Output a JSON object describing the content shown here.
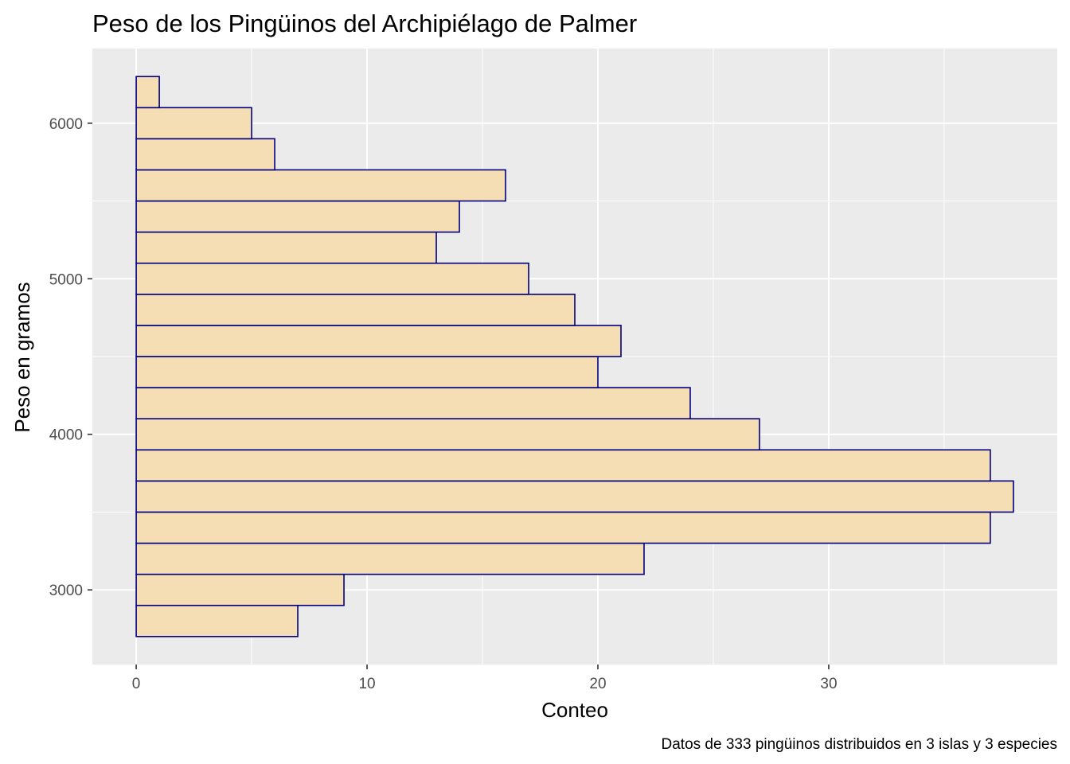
{
  "chart_data": {
    "type": "bar",
    "orientation": "horizontal",
    "title": "Peso de los Pingüinos del Archipiélago de Palmer",
    "xlabel": "Conteo",
    "ylabel": "Peso en gramos",
    "caption": "Datos de 333 pingüinos distribuidos en 3 islas y 3 especies",
    "xlim": [
      -1.9,
      39.9
    ],
    "ylim": [
      2520,
      6480
    ],
    "x_ticks": [
      0,
      10,
      20,
      30
    ],
    "y_ticks": [
      3000,
      4000,
      5000,
      6000
    ],
    "bins": [
      {
        "from": 2700,
        "to": 2900,
        "count": 7
      },
      {
        "from": 2900,
        "to": 3100,
        "count": 9
      },
      {
        "from": 3100,
        "to": 3300,
        "count": 22
      },
      {
        "from": 3300,
        "to": 3500,
        "count": 37
      },
      {
        "from": 3500,
        "to": 3700,
        "count": 38
      },
      {
        "from": 3700,
        "to": 3900,
        "count": 37
      },
      {
        "from": 3900,
        "to": 4100,
        "count": 27
      },
      {
        "from": 4100,
        "to": 4300,
        "count": 24
      },
      {
        "from": 4300,
        "to": 4500,
        "count": 20
      },
      {
        "from": 4500,
        "to": 4700,
        "count": 21
      },
      {
        "from": 4700,
        "to": 4900,
        "count": 19
      },
      {
        "from": 4900,
        "to": 5100,
        "count": 17
      },
      {
        "from": 5100,
        "to": 5300,
        "count": 13
      },
      {
        "from": 5300,
        "to": 5500,
        "count": 14
      },
      {
        "from": 5500,
        "to": 5700,
        "count": 16
      },
      {
        "from": 5700,
        "to": 5900,
        "count": 6
      },
      {
        "from": 5900,
        "to": 6100,
        "count": 5
      },
      {
        "from": 6100,
        "to": 6300,
        "count": 1
      }
    ],
    "grid": true,
    "colors": {
      "panel_background": "#ebebeb",
      "grid_major": "#ffffff",
      "bar_fill": "#f5deb3",
      "bar_stroke": "#000080",
      "tick_label": "#4d4d4d",
      "tick_mark": "#333333"
    }
  }
}
